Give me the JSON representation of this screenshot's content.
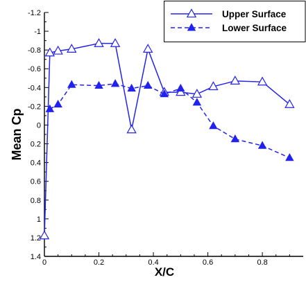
{
  "chart_data": {
    "type": "line",
    "xlabel": "X/C",
    "ylabel": "Mean Cp",
    "xlim": [
      0,
      0.95
    ],
    "ylim": [
      1.4,
      -1.2
    ],
    "y_axis_inverted": true,
    "x_ticks": [
      0,
      0.2,
      0.4,
      0.6,
      0.8
    ],
    "x_tick_labels": [
      "0",
      "0.2",
      "0.4",
      "0.6",
      "0.8"
    ],
    "y_ticks": [
      -1.2,
      -1.0,
      -0.8,
      -0.6,
      -0.4,
      -0.2,
      0,
      0.2,
      0.4,
      0.6,
      0.8,
      1.0,
      1.2,
      1.4
    ],
    "y_tick_labels": [
      "-1.2",
      "-1",
      "-0.8",
      "-0.6",
      "-0.4",
      "-0.2",
      "0",
      "0.2",
      "0.4",
      "0.6",
      "0.8",
      "1",
      "1.2",
      "1.4"
    ],
    "grid": false,
    "legend_position": "top-right",
    "series": [
      {
        "name": "Upper Surface",
        "line_style": "solid",
        "marker": "open-triangle",
        "color": "#2222ee",
        "x": [
          0.0,
          0.02,
          0.05,
          0.1,
          0.2,
          0.26,
          0.32,
          0.38,
          0.44,
          0.5,
          0.56,
          0.62,
          0.7,
          0.8,
          0.9
        ],
        "y": [
          1.18,
          -0.77,
          -0.79,
          -0.81,
          -0.87,
          -0.87,
          0.05,
          -0.81,
          -0.35,
          -0.35,
          -0.33,
          -0.41,
          -0.47,
          -0.46,
          -0.22
        ]
      },
      {
        "name": "Lower Surface",
        "line_style": "dashed",
        "marker": "filled-triangle",
        "color": "#2222ee",
        "x": [
          0.02,
          0.05,
          0.1,
          0.2,
          0.26,
          0.32,
          0.38,
          0.44,
          0.5,
          0.56,
          0.62,
          0.7,
          0.8,
          0.9
        ],
        "y": [
          -0.17,
          -0.22,
          -0.43,
          -0.42,
          -0.44,
          -0.39,
          -0.42,
          -0.33,
          -0.39,
          -0.24,
          0.01,
          0.15,
          0.22,
          0.35
        ]
      }
    ]
  }
}
